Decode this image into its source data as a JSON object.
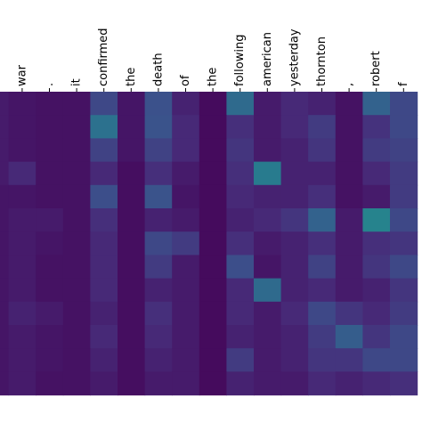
{
  "chart_data": {
    "type": "heatmap",
    "title": "",
    "xlabel": "",
    "ylabel": "",
    "x_tick_labels": [
      ".",
      "war",
      ".",
      "it",
      "confirmed",
      "the",
      "death",
      "of",
      "the",
      "following",
      "american",
      "yesterday",
      "thornton",
      ",",
      "robert",
      "f"
    ],
    "y_tick_labels": [],
    "colormap": "viridis",
    "value_range": [
      0,
      1
    ],
    "grid": false,
    "legend": "none",
    "values": [
      [
        0.08,
        0.06,
        0.05,
        0.05,
        0.22,
        0.06,
        0.25,
        0.1,
        0.03,
        0.35,
        0.08,
        0.12,
        0.1,
        0.05,
        0.32,
        0.22
      ],
      [
        0.08,
        0.06,
        0.05,
        0.05,
        0.38,
        0.06,
        0.26,
        0.12,
        0.03,
        0.14,
        0.08,
        0.12,
        0.18,
        0.05,
        0.15,
        0.22
      ],
      [
        0.08,
        0.06,
        0.05,
        0.05,
        0.2,
        0.06,
        0.2,
        0.12,
        0.03,
        0.16,
        0.08,
        0.1,
        0.16,
        0.05,
        0.18,
        0.2
      ],
      [
        0.08,
        0.12,
        0.05,
        0.05,
        0.12,
        0.04,
        0.14,
        0.08,
        0.03,
        0.14,
        0.42,
        0.1,
        0.1,
        0.05,
        0.12,
        0.18
      ],
      [
        0.06,
        0.06,
        0.05,
        0.05,
        0.24,
        0.04,
        0.26,
        0.06,
        0.03,
        0.12,
        0.1,
        0.1,
        0.14,
        0.05,
        0.08,
        0.18
      ],
      [
        0.06,
        0.08,
        0.08,
        0.05,
        0.14,
        0.04,
        0.1,
        0.08,
        0.03,
        0.1,
        0.12,
        0.16,
        0.32,
        0.08,
        0.45,
        0.22
      ],
      [
        0.06,
        0.08,
        0.06,
        0.05,
        0.12,
        0.04,
        0.22,
        0.18,
        0.03,
        0.14,
        0.08,
        0.1,
        0.14,
        0.08,
        0.14,
        0.16
      ],
      [
        0.06,
        0.08,
        0.05,
        0.05,
        0.12,
        0.04,
        0.18,
        0.08,
        0.03,
        0.24,
        0.06,
        0.1,
        0.2,
        0.08,
        0.16,
        0.22
      ],
      [
        0.06,
        0.08,
        0.05,
        0.05,
        0.12,
        0.04,
        0.1,
        0.08,
        0.03,
        0.12,
        0.35,
        0.1,
        0.12,
        0.08,
        0.1,
        0.16
      ],
      [
        0.06,
        0.1,
        0.08,
        0.05,
        0.1,
        0.04,
        0.14,
        0.08,
        0.03,
        0.12,
        0.08,
        0.12,
        0.22,
        0.16,
        0.12,
        0.18
      ],
      [
        0.06,
        0.08,
        0.06,
        0.05,
        0.12,
        0.04,
        0.12,
        0.08,
        0.03,
        0.1,
        0.08,
        0.1,
        0.18,
        0.3,
        0.16,
        0.22
      ],
      [
        0.06,
        0.08,
        0.06,
        0.05,
        0.1,
        0.04,
        0.1,
        0.08,
        0.03,
        0.18,
        0.08,
        0.1,
        0.16,
        0.16,
        0.22,
        0.22
      ],
      [
        0.06,
        0.08,
        0.05,
        0.05,
        0.08,
        0.04,
        0.08,
        0.08,
        0.03,
        0.1,
        0.08,
        0.08,
        0.12,
        0.1,
        0.12,
        0.14
      ]
    ]
  }
}
